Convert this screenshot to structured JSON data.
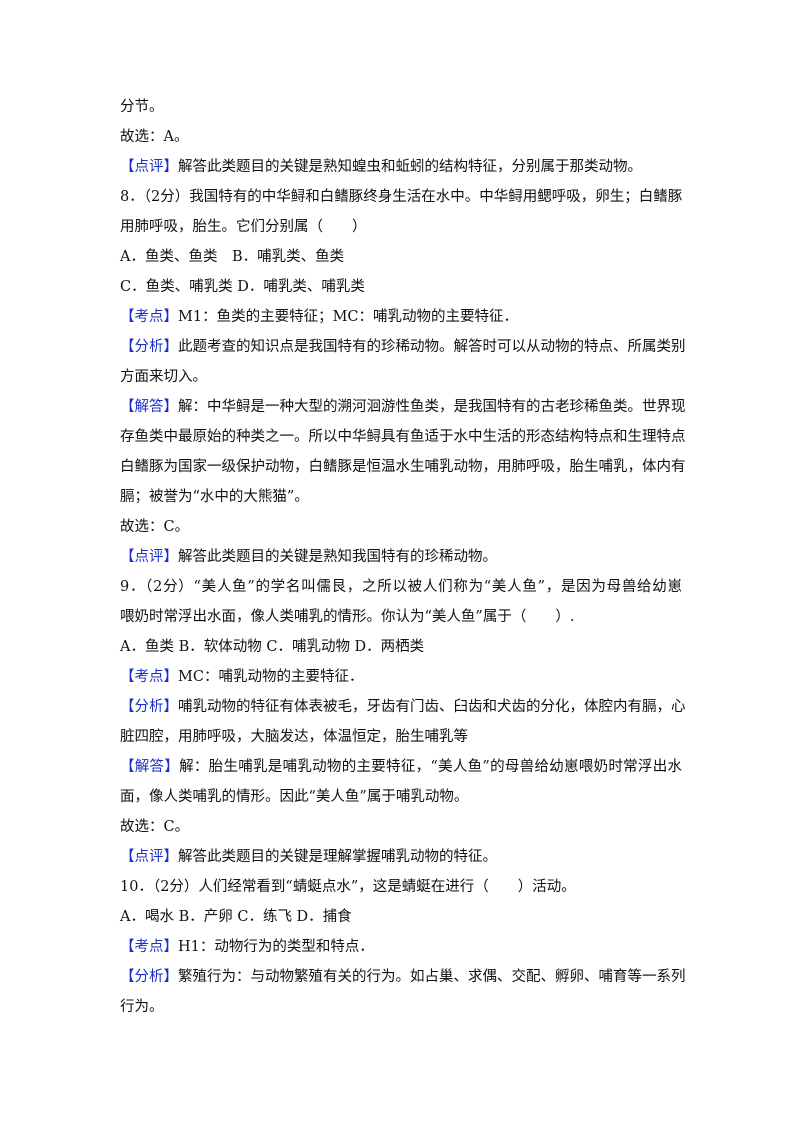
{
  "paragraphs": [
    {
      "lines": [
        "分节。"
      ]
    },
    {
      "lines": [
        "故选：A。"
      ]
    },
    {
      "tag": "【点评】",
      "lines": [
        "解答此类题目的关键是熟知蝗虫和蚯蚓的结构特征，分别属于那类动物。"
      ]
    },
    {
      "lines": [
        "8．（2分）我国特有的中华鲟和白鳍豚终身生活在水中。中华鲟用鳃呼吸，卵生；白鳍豚",
        "用肺呼吸，胎生。它们分别属（　　）"
      ]
    },
    {
      "lines": [
        "A．鱼类、鱼类　B．哺乳类、鱼类"
      ]
    },
    {
      "lines": [
        "C．鱼类、哺乳类 D．哺乳类、哺乳类"
      ]
    },
    {
      "tag": "【考点】",
      "lines": [
        "M1：鱼类的主要特征；MC：哺乳动物的主要特征．"
      ]
    },
    {
      "tag": "【分析】",
      "lines": [
        "此题考查的知识点是我国特有的珍稀动物。解答时可以从动物的特点、所属类别",
        "方面来切入。"
      ]
    },
    {
      "tag": "【解答】",
      "lines": [
        "解：中华鲟是一种大型的溯河洄游性鱼类，是我国特有的古老珍稀鱼类。世界现",
        "存鱼类中最原始的种类之一。所以中华鲟具有鱼适于水中生活的形态结构特点和生理特点",
        "白鳍豚为国家一级保护动物，白鳍豚是恒温水生哺乳动物，用肺呼吸，胎生哺乳，体内有",
        "膈；被誉为“水中的大熊猫”。"
      ]
    },
    {
      "lines": [
        "故选：C。"
      ]
    },
    {
      "tag": "【点评】",
      "lines": [
        "解答此类题目的关键是熟知我国特有的珍稀动物。"
      ]
    },
    {
      "lines": [
        "9．（2分）“美人鱼”的学名叫儒艮，之所以被人们称为“美人鱼”，是因为母兽给幼崽",
        "喂奶时常浮出水面，像人类哺乳的情形。你认为“美人鱼”属于（　　）."
      ]
    },
    {
      "lines": [
        "A．鱼类 B．软体动物 C．哺乳动物 D．两栖类"
      ]
    },
    {
      "tag": "【考点】",
      "lines": [
        "MC：哺乳动物的主要特征．"
      ]
    },
    {
      "tag": "【分析】",
      "lines": [
        "哺乳动物的特征有体表被毛，牙齿有门齿、臼齿和犬齿的分化，体腔内有膈，心",
        "脏四腔，用肺呼吸，大脑发达，体温恒定，胎生哺乳等"
      ]
    },
    {
      "tag": "【解答】",
      "lines": [
        "解：胎生哺乳是哺乳动物的主要特征，“美人鱼”的母兽给幼崽喂奶时常浮出水",
        "面，像人类哺乳的情形。因此“美人鱼”属于哺乳动物。"
      ]
    },
    {
      "lines": [
        "故选：C。"
      ]
    },
    {
      "tag": "【点评】",
      "lines": [
        "解答此类题目的关键是理解掌握哺乳动物的特征。"
      ]
    },
    {
      "lines": [
        "10．（2分）人们经常看到“蜻蜓点水”，这是蜻蜓在进行（　　）活动。"
      ]
    },
    {
      "lines": [
        "A．喝水 B．产卵 C．练飞 D．捕食"
      ]
    },
    {
      "tag": "【考点】",
      "lines": [
        "H1：动物行为的类型和特点．"
      ]
    },
    {
      "tag": "【分析】",
      "lines": [
        "繁殖行为：与动物繁殖有关的行为。如占巢、求偶、交配、孵卵、哺育等一系列",
        "行为。"
      ]
    }
  ]
}
